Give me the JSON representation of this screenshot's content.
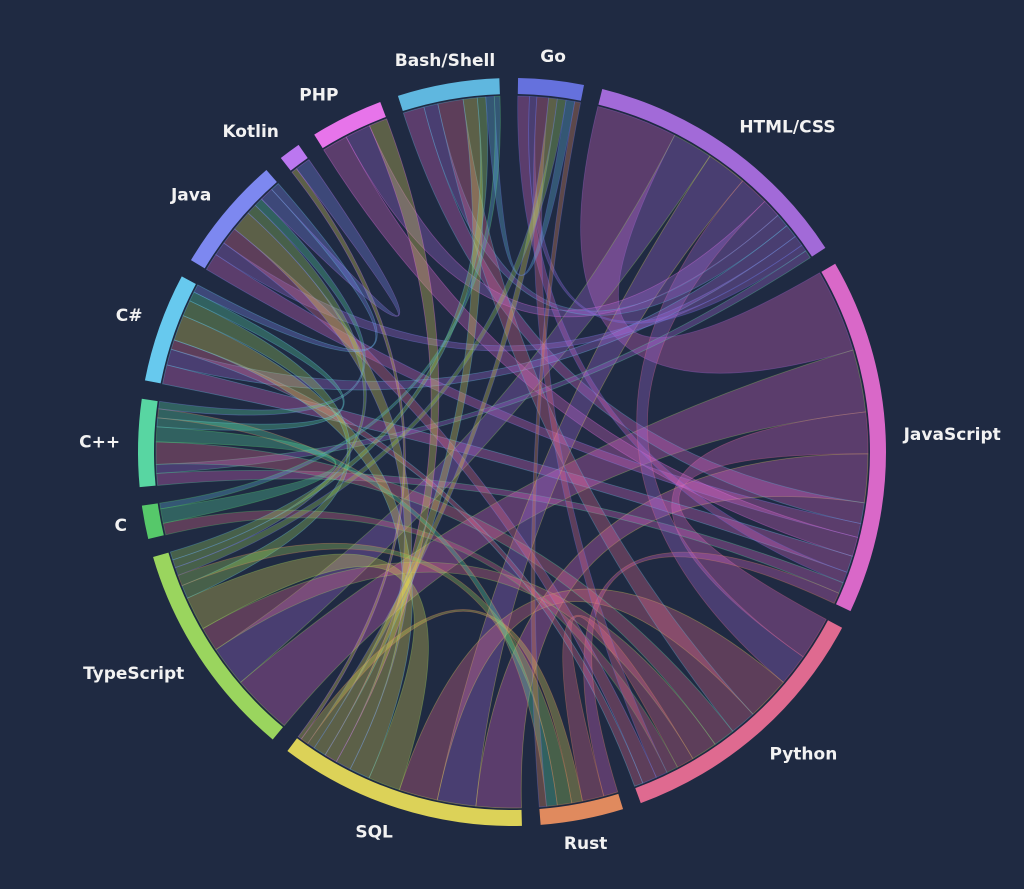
{
  "chart_data": {
    "type": "chord",
    "title": "",
    "groups": [
      {
        "name": "Bash/Shell",
        "value": 70,
        "color": "#5fb7df"
      },
      {
        "name": "Go",
        "value": 45,
        "color": "#6571dd"
      },
      {
        "name": "HTML/CSS",
        "value": 190,
        "color": "#a26ad8"
      },
      {
        "name": "JavaScript",
        "value": 245,
        "color": "#d968c8"
      },
      {
        "name": "Python",
        "value": 185,
        "color": "#df6a90"
      },
      {
        "name": "Rust",
        "value": 57,
        "color": "#e08a5e"
      },
      {
        "name": "SQL",
        "value": 170,
        "color": "#dcd258"
      },
      {
        "name": "TypeScript",
        "value": 150,
        "color": "#9ad55e"
      },
      {
        "name": "C",
        "value": 23,
        "color": "#56c86a"
      },
      {
        "name": "C++",
        "value": 60,
        "color": "#58d6a2"
      },
      {
        "name": "C#",
        "value": 75,
        "color": "#67c9ee"
      },
      {
        "name": "Java",
        "value": 80,
        "color": "#7d88f0"
      },
      {
        "name": "Kotlin",
        "value": 15,
        "color": "#bb77f0"
      },
      {
        "name": "PHP",
        "value": 50,
        "color": "#e774ea"
      }
    ],
    "links": [
      {
        "source": "JavaScript",
        "target": "HTML/CSS",
        "value": 60
      },
      {
        "source": "JavaScript",
        "target": "TypeScript",
        "value": 45
      },
      {
        "source": "JavaScript",
        "target": "Python",
        "value": 30
      },
      {
        "source": "JavaScript",
        "target": "SQL",
        "value": 35
      },
      {
        "source": "JavaScript",
        "target": "Bash/Shell",
        "value": 15
      },
      {
        "source": "JavaScript",
        "target": "Java",
        "value": 10
      },
      {
        "source": "JavaScript",
        "target": "PHP",
        "value": 14
      },
      {
        "source": "JavaScript",
        "target": "C#",
        "value": 12
      },
      {
        "source": "JavaScript",
        "target": "Go",
        "value": 8
      },
      {
        "source": "JavaScript",
        "target": "C++",
        "value": 8
      },
      {
        "source": "JavaScript",
        "target": "Rust",
        "value": 8
      },
      {
        "source": "HTML/CSS",
        "target": "TypeScript",
        "value": 30
      },
      {
        "source": "HTML/CSS",
        "target": "SQL",
        "value": 30
      },
      {
        "source": "HTML/CSS",
        "target": "Python",
        "value": 22
      },
      {
        "source": "HTML/CSS",
        "target": "PHP",
        "value": 14
      },
      {
        "source": "HTML/CSS",
        "target": "Bash/Shell",
        "value": 10
      },
      {
        "source": "HTML/CSS",
        "target": "C#",
        "value": 10
      },
      {
        "source": "HTML/CSS",
        "target": "Java",
        "value": 8
      },
      {
        "source": "HTML/CSS",
        "target": "Go",
        "value": 5
      },
      {
        "source": "HTML/CSS",
        "target": "C++",
        "value": 6
      },
      {
        "source": "Python",
        "target": "SQL",
        "value": 30
      },
      {
        "source": "Python",
        "target": "Bash/Shell",
        "value": 18
      },
      {
        "source": "Python",
        "target": "C++",
        "value": 15
      },
      {
        "source": "Python",
        "target": "TypeScript",
        "value": 18
      },
      {
        "source": "Python",
        "target": "Rust",
        "value": 12
      },
      {
        "source": "Python",
        "target": "C",
        "value": 8
      },
      {
        "source": "Python",
        "target": "Go",
        "value": 8
      },
      {
        "source": "Python",
        "target": "Java",
        "value": 10
      },
      {
        "source": "Python",
        "target": "C#",
        "value": 6
      },
      {
        "source": "SQL",
        "target": "TypeScript",
        "value": 25
      },
      {
        "source": "SQL",
        "target": "C#",
        "value": 16
      },
      {
        "source": "SQL",
        "target": "Java",
        "value": 12
      },
      {
        "source": "SQL",
        "target": "PHP",
        "value": 10
      },
      {
        "source": "SQL",
        "target": "Bash/Shell",
        "value": 10
      },
      {
        "source": "SQL",
        "target": "Go",
        "value": 6
      },
      {
        "source": "SQL",
        "target": "Rust",
        "value": 6
      },
      {
        "source": "SQL",
        "target": "Kotlin",
        "value": 3
      },
      {
        "source": "TypeScript",
        "target": "C#",
        "value": 10
      },
      {
        "source": "TypeScript",
        "target": "Rust",
        "value": 8
      },
      {
        "source": "TypeScript",
        "target": "Go",
        "value": 6
      },
      {
        "source": "TypeScript",
        "target": "Java",
        "value": 6
      },
      {
        "source": "TypeScript",
        "target": "Bash/Shell",
        "value": 6
      },
      {
        "source": "C++",
        "target": "C",
        "value": 10
      },
      {
        "source": "C++",
        "target": "C#",
        "value": 6
      },
      {
        "source": "C++",
        "target": "Rust",
        "value": 6
      },
      {
        "source": "C++",
        "target": "Java",
        "value": 5
      },
      {
        "source": "Java",
        "target": "Kotlin",
        "value": 8
      },
      {
        "source": "Java",
        "target": "C#",
        "value": 5
      },
      {
        "source": "Bash/Shell",
        "target": "Go",
        "value": 6
      },
      {
        "source": "Bash/Shell",
        "target": "C",
        "value": 4
      },
      {
        "source": "Rust",
        "target": "Go",
        "value": 4
      }
    ]
  }
}
